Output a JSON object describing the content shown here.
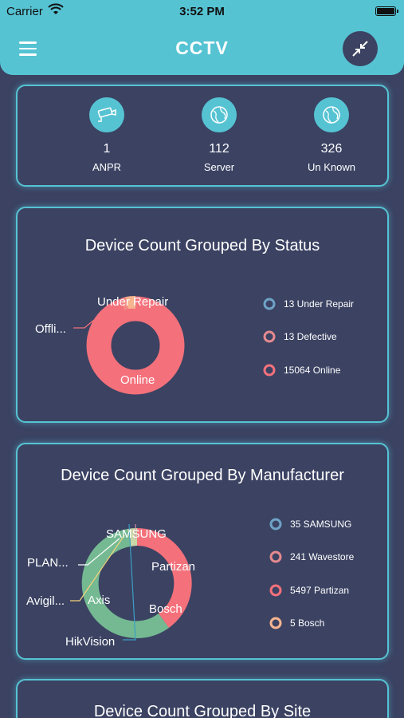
{
  "status_bar": {
    "carrier": "Carrier",
    "time": "3:52 PM"
  },
  "header": {
    "title": "CCTV"
  },
  "stats": [
    {
      "icon": "cctv-camera-icon",
      "count": "1",
      "label": "ANPR"
    },
    {
      "icon": "globe-icon",
      "count": "112",
      "label": "Server"
    },
    {
      "icon": "globe-icon",
      "count": "326",
      "label": "Un Known"
    }
  ],
  "colors": {
    "accent": "#56c3d3",
    "background": "#3b4262",
    "online": "#f4717b",
    "repair": "#f6b48f",
    "green": "#74b992"
  },
  "status_chart": {
    "title": "Device Count Grouped By Status",
    "labels": {
      "under_repair": "Under Repair",
      "offline": "Offli...",
      "online": "Online"
    },
    "legend": [
      "13 Under Repair",
      "13 Defective",
      "15064 Online"
    ],
    "chart_data": {
      "type": "pie",
      "categories": [
        "Under Repair",
        "Defective",
        "Online"
      ],
      "values": [
        13,
        13,
        15064
      ]
    }
  },
  "manufacturer_chart": {
    "title": "Device Count Grouped By Manufacturer",
    "labels": {
      "samsung": "SAMSUNG",
      "partizan": "Partizan",
      "plan": "PLAN...",
      "avigil": "Avigil...",
      "axis": "Axis",
      "bosch": "Bosch",
      "hikvision": "HikVision"
    },
    "legend": [
      "35 SAMSUNG",
      "241 Wavestore",
      "5497 Partizan",
      "5 Bosch"
    ]
  },
  "site_chart": {
    "title": "Device Count Grouped By Site"
  }
}
